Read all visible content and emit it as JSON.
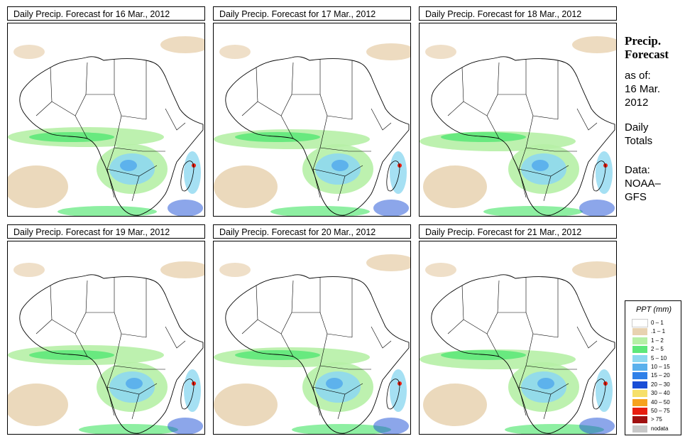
{
  "panels": [
    {
      "title": "Daily Precip. Forecast for  16 Mar., 2012"
    },
    {
      "title": "Daily Precip. Forecast for  17 Mar., 2012"
    },
    {
      "title": "Daily Precip. Forecast for  18 Mar., 2012"
    },
    {
      "title": "Daily Precip. Forecast for  19 Mar., 2012"
    },
    {
      "title": "Daily Precip. Forecast for  20 Mar., 2012"
    },
    {
      "title": "Daily Precip. Forecast for  21 Mar., 2012"
    }
  ],
  "side": {
    "title_line1": "Precip.",
    "title_line2": "Forecast",
    "asof_label": "as of:",
    "asof_date1": "16 Mar.",
    "asof_date2": "2012",
    "daily1": "Daily",
    "daily2": "Totals",
    "data1": "Data:",
    "data2": "NOAA–",
    "data3": "GFS"
  },
  "legend": {
    "title": "PPT (mm)",
    "items": [
      {
        "label": "0 – 1",
        "color": "#ffffff"
      },
      {
        "label": ".1 – 1",
        "color": "#e8d2b0"
      },
      {
        "label": "1 – 2",
        "color": "#b6f0a6"
      },
      {
        "label": "2 – 5",
        "color": "#5ee87a"
      },
      {
        "label": "5 – 10",
        "color": "#8ed8f0"
      },
      {
        "label": "10 – 15",
        "color": "#5ab0ec"
      },
      {
        "label": "15 – 20",
        "color": "#2f80e8"
      },
      {
        "label": "20 – 30",
        "color": "#1a4ed6"
      },
      {
        "label": "30 – 40",
        "color": "#f6e06a"
      },
      {
        "label": "40 – 50",
        "color": "#f6a21e"
      },
      {
        "label": "50 – 75",
        "color": "#e81e10"
      },
      {
        "label": "> 75",
        "color": "#a01010"
      },
      {
        "label": "nodata",
        "color": "#c8c8c8"
      }
    ]
  }
}
